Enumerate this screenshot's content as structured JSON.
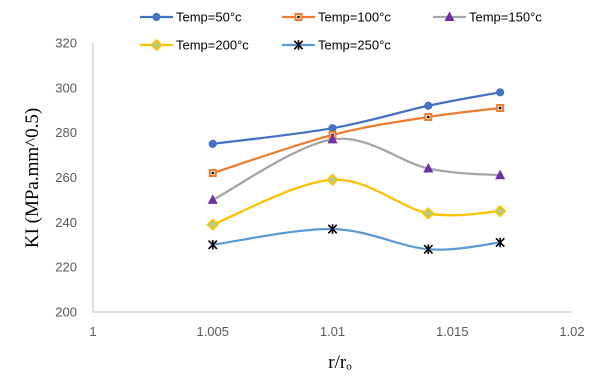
{
  "chart_data": {
    "type": "line",
    "xlabel": "r/rₒ",
    "ylabel": "KI (MPa.mm^0.5)",
    "xlim": [
      1,
      1.02
    ],
    "ylim": [
      200,
      320
    ],
    "x_ticks": [
      "1",
      "1.005",
      "1.01",
      "1.015",
      "1.02"
    ],
    "y_ticks": [
      "200",
      "220",
      "240",
      "260",
      "280",
      "300",
      "320"
    ],
    "grid": false,
    "legend_position": "top",
    "smooth": true,
    "series": [
      {
        "name": "Temp=50°c",
        "color": "#4472C4",
        "marker": "circle",
        "x": [
          1.005,
          1.01,
          1.014,
          1.017
        ],
        "y": [
          275,
          282,
          292,
          298
        ]
      },
      {
        "name": "Temp=100°c",
        "color": "#ED7D31",
        "marker": "square",
        "x": [
          1.005,
          1.01,
          1.014,
          1.017
        ],
        "y": [
          262,
          279,
          287,
          291
        ]
      },
      {
        "name": "Temp=150°c",
        "color": "#A5A5A5",
        "marker": "triangle",
        "x": [
          1.005,
          1.01,
          1.014,
          1.017
        ],
        "y": [
          250,
          277,
          264,
          261
        ]
      },
      {
        "name": "Temp=200°c",
        "color": "#FFC000",
        "marker": "diamond",
        "x": [
          1.005,
          1.01,
          1.014,
          1.017
        ],
        "y": [
          239,
          259,
          244,
          245
        ]
      },
      {
        "name": "Temp=250°c",
        "color": "#5B9BD5",
        "marker": "star",
        "x": [
          1.005,
          1.01,
          1.014,
          1.017
        ],
        "y": [
          230,
          237,
          228,
          231
        ]
      }
    ]
  }
}
